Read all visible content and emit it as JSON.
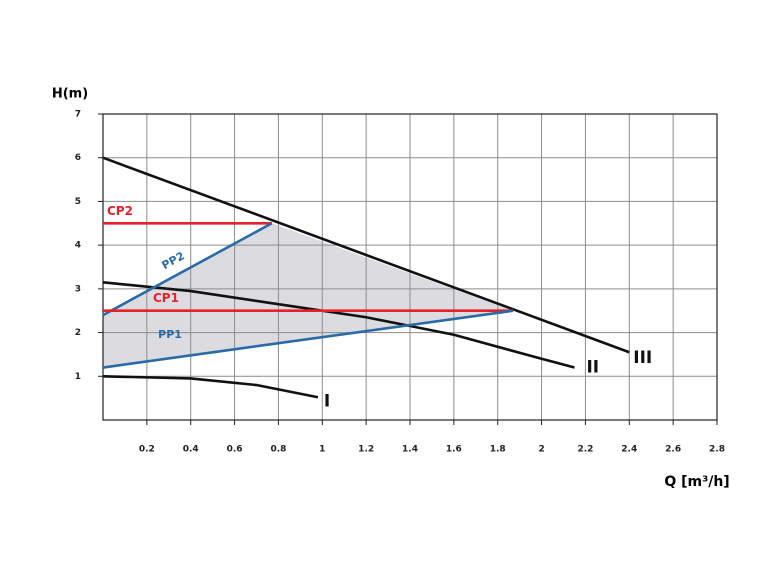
{
  "chart_data": {
    "type": "line",
    "x_label": "Q [m³/h]",
    "y_label": "H(m)",
    "xlim": [
      0,
      2.8
    ],
    "ylim": [
      0,
      7
    ],
    "xticks": [
      0.2,
      0.4,
      0.6,
      0.8,
      1.0,
      1.2,
      1.4,
      1.6,
      1.8,
      2.0,
      2.2,
      2.4,
      2.6,
      2.8
    ],
    "yticks": [
      1,
      2,
      3,
      4,
      5,
      6,
      7
    ],
    "grid": true,
    "shaded_area_color": "#d6d6da",
    "series": [
      {
        "name": "I",
        "color": "#111111",
        "x": [
          0,
          0.4,
          0.7,
          0.98
        ],
        "values": [
          1.0,
          0.95,
          0.8,
          0.52
        ]
      },
      {
        "name": "II",
        "color": "#111111",
        "x": [
          0,
          0.4,
          0.8,
          1.2,
          1.6,
          2.0,
          2.15
        ],
        "values": [
          3.15,
          2.95,
          2.65,
          2.35,
          1.95,
          1.4,
          1.2
        ]
      },
      {
        "name": "III",
        "color": "#111111",
        "x": [
          0,
          2.4
        ],
        "values": [
          6.0,
          1.55
        ]
      },
      {
        "name": "CP2",
        "color": "#e3232b",
        "x": [
          0,
          0.77
        ],
        "values": [
          4.5,
          4.5
        ]
      },
      {
        "name": "PP2",
        "color": "#2a6aa6",
        "x": [
          0,
          0.77
        ],
        "values": [
          2.4,
          4.5
        ]
      },
      {
        "name": "CP1",
        "color": "#e3232b",
        "x": [
          0,
          1.87
        ],
        "values": [
          2.5,
          2.5
        ]
      },
      {
        "name": "PP1",
        "color": "#2a6aa6",
        "x": [
          0,
          1.87
        ],
        "values": [
          1.2,
          2.5
        ]
      }
    ]
  }
}
